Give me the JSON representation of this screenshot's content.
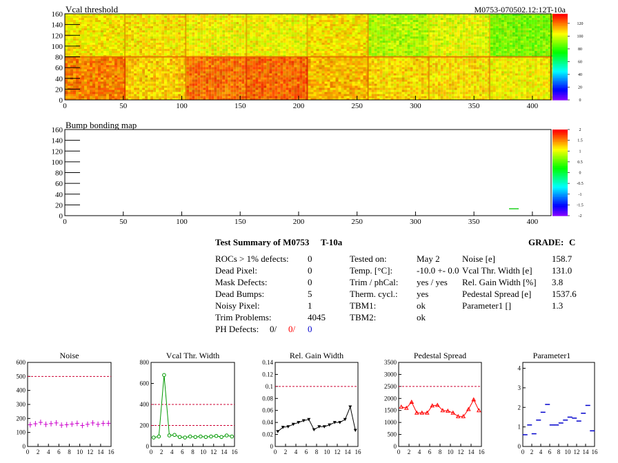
{
  "header": {
    "map1_title": "Vcal threshold",
    "module_id": "M0753-070502.12:12T-10a",
    "map2_title": "Bump bonding map"
  },
  "map_axes": {
    "x_ticks": [
      "0",
      "50",
      "100",
      "150",
      "200",
      "250",
      "300",
      "350",
      "400"
    ],
    "y_ticks": [
      "0",
      "20",
      "40",
      "60",
      "80",
      "100",
      "120",
      "140",
      "160"
    ]
  },
  "colorbar1_labels": [
    "0",
    "20",
    "40",
    "60",
    "80",
    "100",
    "120"
  ],
  "colorbar2_labels": [
    "-2",
    "-1.5",
    "-1",
    "-0.5",
    "0",
    "0.5",
    "1",
    "1.5",
    "2"
  ],
  "summary": {
    "title": "Test Summary of M0753",
    "code": "T-10a",
    "grade_label": "GRADE:",
    "grade_value": "C",
    "left": [
      {
        "label": "ROCs > 1% defects:",
        "value": "0"
      },
      {
        "label": "Dead Pixel:",
        "value": "0"
      },
      {
        "label": "Mask Defects:",
        "value": "0"
      },
      {
        "label": "Dead Bumps:",
        "value": "5"
      },
      {
        "label": "Noisy Pixel:",
        "value": "1"
      },
      {
        "label": "Trim Problems:",
        "value": "4045"
      }
    ],
    "ph_label": "PH Defects:",
    "ph_values": [
      "0/",
      "0/",
      "0"
    ],
    "ph_colors": [
      "#000000",
      "#ff0000",
      "#0000cc"
    ],
    "middle": [
      {
        "label": "Tested on:",
        "value": "May 2"
      },
      {
        "label": "Temp. [°C]:",
        "value": "-10.0 +- 0.0"
      },
      {
        "label": "Trim / phCal:",
        "value": "yes / yes"
      },
      {
        "label": "Therm. cycl.:",
        "value": "yes"
      },
      {
        "label": "TBM1:",
        "value": "ok"
      },
      {
        "label": "TBM2:",
        "value": "ok"
      }
    ],
    "right": [
      {
        "label": "Noise [e]",
        "value": "158.7"
      },
      {
        "label": "Vcal Thr. Width [e]",
        "value": "131.0"
      },
      {
        "label": "Rel. Gain Width [%]",
        "value": "3.8"
      },
      {
        "label": "Pedestal Spread [e]",
        "value": "1537.6"
      },
      {
        "label": "Parameter1 []",
        "value": "1.3"
      }
    ]
  },
  "chart_data": [
    {
      "type": "scatter",
      "title": "Noise",
      "x": [
        0,
        1,
        2,
        3,
        4,
        5,
        6,
        7,
        8,
        9,
        10,
        11,
        12,
        13,
        14,
        15
      ],
      "values": [
        155,
        162,
        172,
        158,
        163,
        168,
        152,
        155,
        160,
        165,
        150,
        158,
        168,
        158,
        165,
        165
      ],
      "xlim": [
        0,
        16
      ],
      "ylim": [
        0,
        600
      ],
      "yticks": [
        "0",
        "100",
        "200",
        "300",
        "400",
        "500",
        "600"
      ],
      "xticks": [
        "0",
        "2",
        "4",
        "6",
        "8",
        "10",
        "12",
        "14",
        "16"
      ],
      "reference_lines": [
        500
      ],
      "color": "#cc00cc",
      "marker": "cross"
    },
    {
      "type": "line",
      "title": "Vcal Thr. Width",
      "x": [
        0,
        1,
        2,
        3,
        4,
        5,
        6,
        7,
        8,
        9,
        10,
        11,
        12,
        13,
        14,
        15
      ],
      "values": [
        85,
        95,
        680,
        105,
        110,
        90,
        85,
        95,
        90,
        95,
        90,
        95,
        100,
        90,
        105,
        95
      ],
      "xlim": [
        0,
        16
      ],
      "ylim": [
        0,
        800
      ],
      "yticks": [
        "0",
        "200",
        "400",
        "600",
        "800"
      ],
      "xticks": [
        "0",
        "2",
        "4",
        "6",
        "8",
        "10",
        "12",
        "14",
        "16"
      ],
      "reference_lines": [
        200,
        400
      ],
      "color": "#009900",
      "marker": "circle"
    },
    {
      "type": "line",
      "title": "Rel. Gain Width",
      "x": [
        0,
        1,
        2,
        3,
        4,
        5,
        6,
        7,
        8,
        9,
        10,
        11,
        12,
        13,
        14,
        15
      ],
      "values": [
        0.025,
        0.032,
        0.033,
        0.037,
        0.04,
        0.043,
        0.045,
        0.028,
        0.033,
        0.033,
        0.036,
        0.04,
        0.04,
        0.045,
        0.066,
        0.027
      ],
      "xlim": [
        0,
        16
      ],
      "ylim": [
        0,
        0.14
      ],
      "yticks": [
        "0",
        "0.02",
        "0.04",
        "0.06",
        "0.08",
        "0.1",
        "0.12",
        "0.14"
      ],
      "xticks": [
        "0",
        "2",
        "4",
        "6",
        "8",
        "10",
        "12",
        "14",
        "16"
      ],
      "reference_lines": [
        0.1
      ],
      "color": "#000000",
      "marker": "triangle"
    },
    {
      "type": "line",
      "title": "Pedestal Spread",
      "x": [
        0,
        1,
        2,
        3,
        4,
        5,
        6,
        7,
        8,
        9,
        10,
        11,
        12,
        13,
        14,
        15
      ],
      "values": [
        1650,
        1600,
        1850,
        1400,
        1400,
        1400,
        1700,
        1720,
        1500,
        1480,
        1400,
        1250,
        1250,
        1550,
        1950,
        1500
      ],
      "xlim": [
        0,
        16
      ],
      "ylim": [
        0,
        3500
      ],
      "yticks": [
        "0",
        "500",
        "1000",
        "1500",
        "2000",
        "2500",
        "3000",
        "3500"
      ],
      "xticks": [
        "0",
        "2",
        "4",
        "6",
        "8",
        "10",
        "12",
        "14",
        "16"
      ],
      "reference_lines": [
        2500
      ],
      "color": "#ff0000",
      "marker": "triangle-up"
    },
    {
      "type": "scatter",
      "title": "Parameter1",
      "x": [
        0,
        1,
        2,
        3,
        4,
        5,
        6,
        7,
        8,
        9,
        10,
        11,
        12,
        13,
        14,
        15
      ],
      "values": [
        0.6,
        1.1,
        0.65,
        1.35,
        1.75,
        2.15,
        1.1,
        1.1,
        1.2,
        1.35,
        1.5,
        1.45,
        1.3,
        1.7,
        2.1,
        0.8
      ],
      "xlim": [
        0,
        16
      ],
      "ylim": [
        0,
        4.3
      ],
      "yticks": [
        "0",
        "1",
        "2",
        "3",
        "4"
      ],
      "xticks": [
        "0",
        "2",
        "4",
        "6",
        "8",
        "10",
        "12",
        "14",
        "16"
      ],
      "reference_lines": [],
      "color": "#0000cc",
      "marker": "hbar"
    }
  ]
}
